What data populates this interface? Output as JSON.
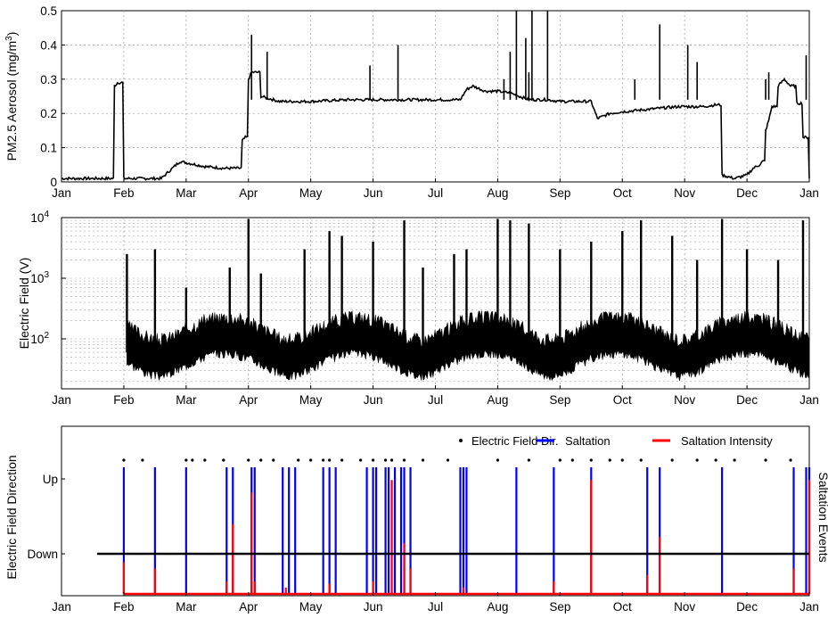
{
  "chart_data": [
    {
      "type": "line",
      "ylabel": "PM2.5 Aerosol (mg/m",
      "ylabel_sup": "3",
      "ylabel_tail": ")",
      "xticks": [
        "Jan",
        "Feb",
        "Mar",
        "Apr",
        "May",
        "Jun",
        "Jul",
        "Aug",
        "Sep",
        "Oct",
        "Nov",
        "Dec",
        "Jan"
      ],
      "ylim": [
        0,
        0.5
      ],
      "yticks": [
        "0",
        "0.1",
        "0.2",
        "0.3",
        "0.4",
        "0.5"
      ],
      "grid": true,
      "series": [
        {
          "x": [
            0,
            0.2,
            0.8,
            0.85,
            0.9,
            0.95,
            1.0,
            1.2,
            1.3,
            1.6,
            1.9,
            2.3,
            2.6,
            2.7,
            2.8,
            2.9,
            2.95,
            3.0,
            3.05,
            3.2,
            3.5,
            4.0,
            4.6,
            5.0,
            5.5,
            6.0,
            6.4,
            6.5,
            6.6,
            6.8,
            7.0,
            7.2,
            7.5,
            7.8,
            8.0,
            8.3,
            8.5,
            8.6,
            8.8,
            9.0,
            9.3,
            9.6,
            9.9,
            10.1,
            10.3,
            10.5,
            10.6,
            10.8,
            11.0,
            11.1,
            11.2,
            11.25,
            11.3,
            11.35,
            11.4,
            11.5,
            11.6,
            11.7,
            11.8,
            11.9,
            12.0
          ],
          "y": [
            0.01,
            0.01,
            0.01,
            0.28,
            0.29,
            0.29,
            0.01,
            0.01,
            0.01,
            0.01,
            0.06,
            0.045,
            0.04,
            0.04,
            0.04,
            0.12,
            0.13,
            0.3,
            0.32,
            0.25,
            0.235,
            0.235,
            0.24,
            0.24,
            0.24,
            0.24,
            0.24,
            0.27,
            0.28,
            0.265,
            0.265,
            0.26,
            0.24,
            0.24,
            0.235,
            0.235,
            0.235,
            0.185,
            0.2,
            0.205,
            0.21,
            0.215,
            0.22,
            0.22,
            0.22,
            0.225,
            0.02,
            0.01,
            0.02,
            0.04,
            0.05,
            0.06,
            0.15,
            0.18,
            0.22,
            0.28,
            0.3,
            0.28,
            0.23,
            0.13,
            0.01
          ]
        }
      ]
    },
    {
      "type": "scatter",
      "ylabel": "Electric Field (V)",
      "yscale": "log",
      "ylim": [
        15,
        10000
      ],
      "yticks_base": "10",
      "ytick_exponents": [
        "2",
        "3",
        "4"
      ],
      "xticks": [
        "Jan",
        "Feb",
        "Mar",
        "Apr",
        "May",
        "Jun",
        "Jul",
        "Aug",
        "Sep",
        "Oct",
        "Nov",
        "Dec",
        "Jan"
      ],
      "grid": true,
      "baseline": 75,
      "spikes": [
        {
          "x": 1.05,
          "y": 2500
        },
        {
          "x": 1.5,
          "y": 3000
        },
        {
          "x": 2.0,
          "y": 700
        },
        {
          "x": 2.7,
          "y": 1500
        },
        {
          "x": 3.0,
          "y": 9500
        },
        {
          "x": 3.2,
          "y": 1200
        },
        {
          "x": 3.9,
          "y": 3000
        },
        {
          "x": 4.3,
          "y": 6000
        },
        {
          "x": 4.5,
          "y": 5000
        },
        {
          "x": 5.0,
          "y": 4000
        },
        {
          "x": 5.5,
          "y": 9000
        },
        {
          "x": 5.8,
          "y": 1500
        },
        {
          "x": 6.3,
          "y": 2500
        },
        {
          "x": 6.5,
          "y": 3000
        },
        {
          "x": 7.0,
          "y": 9500
        },
        {
          "x": 7.2,
          "y": 9000
        },
        {
          "x": 7.5,
          "y": 8000
        },
        {
          "x": 8.0,
          "y": 3000
        },
        {
          "x": 8.5,
          "y": 4000
        },
        {
          "x": 9.0,
          "y": 6000
        },
        {
          "x": 9.3,
          "y": 9000
        },
        {
          "x": 9.8,
          "y": 5000
        },
        {
          "x": 10.2,
          "y": 2000
        },
        {
          "x": 10.6,
          "y": 9500
        },
        {
          "x": 11.0,
          "y": 3000
        },
        {
          "x": 11.5,
          "y": 2000
        },
        {
          "x": 11.9,
          "y": 9000
        }
      ]
    },
    {
      "type": "line",
      "ylabel": "Electric Field Direction",
      "ylabel_right": "Saltation Events",
      "yticks": [
        "Up",
        "Down"
      ],
      "xticks": [
        "Jan",
        "Feb",
        "Mar",
        "Apr",
        "May",
        "Jun",
        "Jul",
        "Aug",
        "Sep",
        "Oct",
        "Nov",
        "Dec",
        "Jan"
      ],
      "legend": [
        {
          "name": "Electric Field Dir.",
          "color": "#000000"
        },
        {
          "name": "Saltation",
          "color": "#0000ff"
        },
        {
          "name": "Saltation Intensity",
          "color": "#ff0000"
        }
      ],
      "direction_x_range": [
        1.0,
        12.0
      ],
      "up_dots": [
        1.0,
        1.3,
        2.0,
        2.1,
        2.3,
        2.6,
        3.0,
        3.2,
        3.4,
        3.8,
        4.0,
        4.2,
        4.3,
        4.5,
        4.8,
        5.0,
        5.2,
        5.3,
        5.5,
        5.8,
        6.2,
        7.0,
        7.5,
        8.0,
        8.2,
        8.5,
        8.8,
        9.0,
        9.3,
        9.8,
        10.2,
        10.5,
        10.8,
        11.3,
        11.7
      ],
      "saltation_x": [
        1.0,
        1.5,
        2.0,
        2.65,
        2.75,
        3.05,
        3.1,
        3.55,
        3.65,
        3.75,
        4.2,
        4.3,
        4.4,
        4.9,
        5.0,
        5.05,
        5.2,
        5.25,
        5.35,
        5.45,
        5.5,
        5.6,
        6.4,
        6.45,
        6.5,
        7.3,
        7.9,
        8.5,
        9.4,
        9.6,
        10.6,
        11.75,
        11.95,
        12.0
      ],
      "intensity": [
        {
          "x": 1.0,
          "y": 0.25
        },
        {
          "x": 1.5,
          "y": 0.2
        },
        {
          "x": 2.65,
          "y": 0.1
        },
        {
          "x": 2.75,
          "y": 0.55
        },
        {
          "x": 3.05,
          "y": 0.8
        },
        {
          "x": 3.1,
          "y": 0.1
        },
        {
          "x": 3.6,
          "y": 0.05
        },
        {
          "x": 4.3,
          "y": 0.08
        },
        {
          "x": 5.0,
          "y": 0.1
        },
        {
          "x": 5.3,
          "y": 0.9
        },
        {
          "x": 5.5,
          "y": 0.4
        },
        {
          "x": 5.6,
          "y": 0.2
        },
        {
          "x": 6.45,
          "y": 0.05
        },
        {
          "x": 7.9,
          "y": 0.1
        },
        {
          "x": 8.5,
          "y": 0.9
        },
        {
          "x": 9.4,
          "y": 0.15
        },
        {
          "x": 9.6,
          "y": 0.45
        },
        {
          "x": 11.75,
          "y": 0.2
        },
        {
          "x": 12.0,
          "y": 0.9
        }
      ]
    }
  ]
}
